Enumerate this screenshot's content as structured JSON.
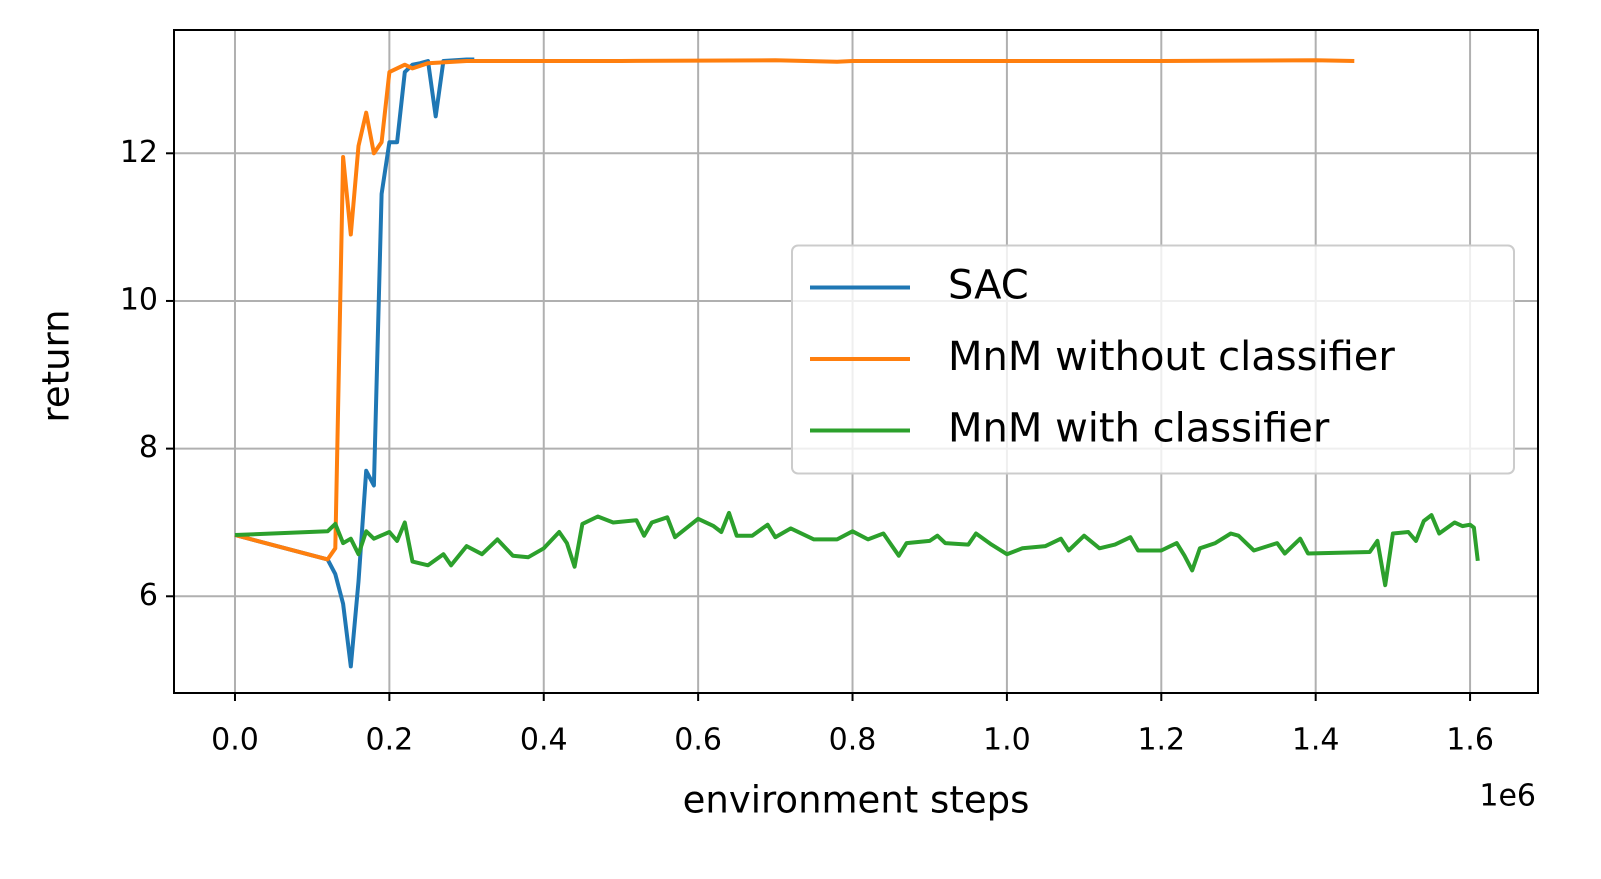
{
  "chart_data": {
    "type": "line",
    "xlabel": "environment steps",
    "ylabel": "return",
    "x_offset_label": "1e6",
    "xlim": [
      -0.079,
      1.688
    ],
    "ylim": [
      4.69,
      13.67
    ],
    "xticks": [
      {
        "value": 0,
        "label": "0.0"
      },
      0.2,
      0.4,
      0.6,
      0.8,
      {
        "value": 1,
        "label": "1.0"
      },
      1.2,
      1.4,
      1.6
    ],
    "yticks": [
      6,
      8,
      10,
      12
    ],
    "grid": true,
    "legend": "center right",
    "series": [
      {
        "name": "SAC",
        "color": "#1f77b4",
        "x": [
          0,
          0.12,
          0.13,
          0.14,
          0.15,
          0.16,
          0.17,
          0.18,
          0.19,
          0.2,
          0.21,
          0.22,
          0.23,
          0.24,
          0.25,
          0.26,
          0.27,
          0.3,
          0.31
        ],
        "values": [
          6.83,
          6.5,
          6.3,
          5.9,
          5.05,
          6.2,
          7.7,
          7.5,
          11.45,
          12.15,
          12.15,
          13.1,
          13.2,
          13.22,
          13.25,
          12.5,
          13.25,
          13.27,
          13.27
        ]
      },
      {
        "name": "MnM without classifier",
        "color": "#ff7f0e",
        "x": [
          0,
          0.12,
          0.13,
          0.14,
          0.15,
          0.16,
          0.17,
          0.18,
          0.19,
          0.2,
          0.22,
          0.23,
          0.25,
          0.3,
          0.5,
          0.7,
          0.78,
          0.8,
          1.0,
          1.2,
          1.4,
          1.45
        ],
        "values": [
          6.83,
          6.5,
          6.65,
          11.95,
          10.9,
          12.1,
          12.55,
          12.0,
          12.15,
          13.1,
          13.2,
          13.15,
          13.22,
          13.25,
          13.25,
          13.26,
          13.24,
          13.25,
          13.25,
          13.25,
          13.26,
          13.25
        ]
      },
      {
        "name": "MnM with classifier",
        "color": "#2ca02c",
        "x": [
          0,
          0.12,
          0.13,
          0.14,
          0.15,
          0.16,
          0.17,
          0.18,
          0.2,
          0.21,
          0.22,
          0.23,
          0.25,
          0.27,
          0.28,
          0.3,
          0.32,
          0.34,
          0.36,
          0.38,
          0.4,
          0.42,
          0.43,
          0.44,
          0.45,
          0.47,
          0.49,
          0.52,
          0.53,
          0.54,
          0.56,
          0.57,
          0.6,
          0.62,
          0.63,
          0.64,
          0.65,
          0.67,
          0.69,
          0.7,
          0.72,
          0.75,
          0.78,
          0.8,
          0.82,
          0.84,
          0.86,
          0.87,
          0.9,
          0.91,
          0.92,
          0.95,
          0.96,
          0.98,
          1.0,
          1.02,
          1.05,
          1.07,
          1.08,
          1.1,
          1.12,
          1.14,
          1.16,
          1.17,
          1.2,
          1.22,
          1.23,
          1.24,
          1.25,
          1.27,
          1.29,
          1.3,
          1.32,
          1.35,
          1.36,
          1.38,
          1.39,
          1.47,
          1.48,
          1.49,
          1.5,
          1.52,
          1.53,
          1.54,
          1.55,
          1.56,
          1.58,
          1.59,
          1.6,
          1.605,
          1.61
        ],
        "values": [
          6.83,
          6.88,
          6.98,
          6.72,
          6.78,
          6.57,
          6.88,
          6.78,
          6.87,
          6.75,
          7.0,
          6.47,
          6.42,
          6.57,
          6.42,
          6.68,
          6.57,
          6.77,
          6.55,
          6.53,
          6.65,
          6.87,
          6.72,
          6.4,
          6.98,
          7.08,
          7.0,
          7.03,
          6.82,
          7.0,
          7.07,
          6.8,
          7.05,
          6.95,
          6.87,
          7.13,
          6.82,
          6.82,
          6.97,
          6.8,
          6.92,
          6.77,
          6.77,
          6.88,
          6.77,
          6.85,
          6.55,
          6.72,
          6.75,
          6.82,
          6.72,
          6.7,
          6.85,
          6.7,
          6.57,
          6.65,
          6.68,
          6.78,
          6.62,
          6.82,
          6.65,
          6.7,
          6.8,
          6.62,
          6.62,
          6.72,
          6.55,
          6.35,
          6.65,
          6.72,
          6.85,
          6.82,
          6.62,
          6.72,
          6.58,
          6.78,
          6.58,
          6.6,
          6.75,
          6.15,
          6.85,
          6.87,
          6.75,
          7.02,
          7.1,
          6.85,
          7.0,
          6.95,
          6.97,
          6.93,
          6.48
        ]
      }
    ]
  }
}
